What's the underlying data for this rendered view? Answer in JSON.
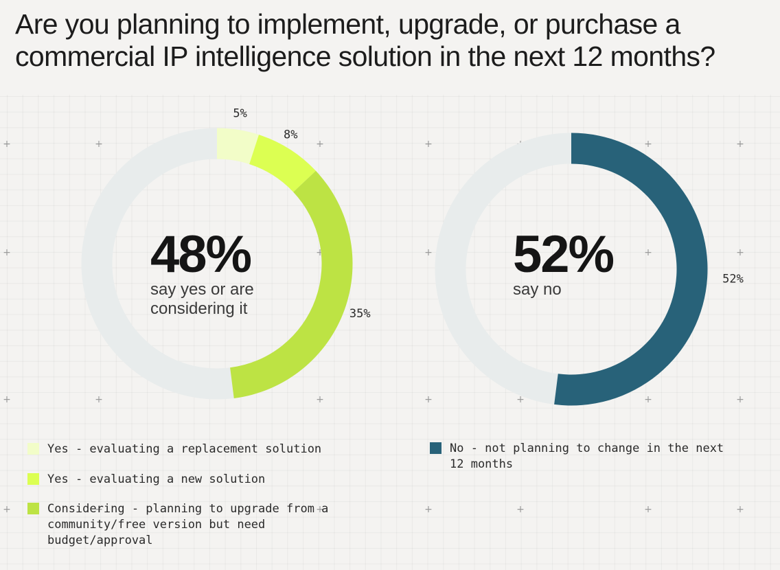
{
  "title": "Are you planning to implement, upgrade, or purchase a commercial IP intelligence solution in the next 12 months?",
  "chart_data": [
    {
      "type": "pie",
      "title": "",
      "center": {
        "value": "48%",
        "caption": "say yes or are considering it"
      },
      "series": [
        {
          "name": "Yes - evaluating a replacement solution",
          "value": 5,
          "label": "5%",
          "color": "#f2fdc8"
        },
        {
          "name": "Yes - evaluating a new solution",
          "value": 8,
          "label": "8%",
          "color": "#dcff52"
        },
        {
          "name": "Considering - planning to upgrade from a community/free version but need budget/approval",
          "value": 35,
          "label": "35%",
          "color": "#bde344"
        }
      ],
      "remainder_color": "#e8ecec",
      "legend_position": "bottom"
    },
    {
      "type": "pie",
      "title": "",
      "center": {
        "value": "52%",
        "caption": "say no"
      },
      "series": [
        {
          "name": "No - not planning to change in the next 12 months",
          "value": 52,
          "label": "52%",
          "color": "#286279"
        }
      ],
      "remainder_color": "#e8ecec",
      "legend_position": "bottom"
    }
  ]
}
